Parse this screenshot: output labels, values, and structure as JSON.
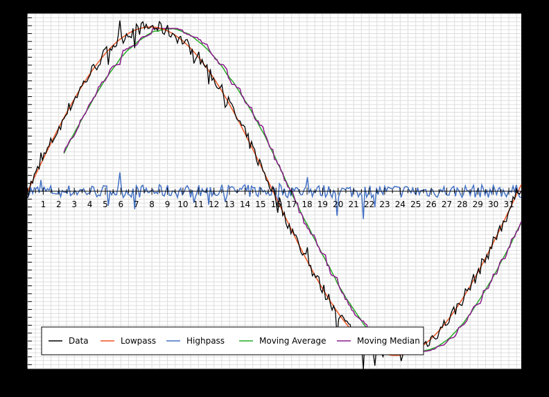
{
  "chart_data": {
    "type": "line",
    "x_ticks": [
      1,
      2,
      3,
      4,
      5,
      6,
      7,
      8,
      9,
      10,
      11,
      12,
      13,
      14,
      15,
      16,
      17,
      18,
      19,
      20,
      21,
      22,
      23,
      24,
      25,
      26,
      27,
      28,
      29,
      30,
      31
    ],
    "x_range": [
      0,
      31.8
    ],
    "y_range": [
      -1.08,
      1.08
    ],
    "grid": true,
    "legend_placement": "bottom-left",
    "series": [
      {
        "name": "Data",
        "color": "#000000"
      },
      {
        "name": "Lowpass",
        "color": "#ee5522"
      },
      {
        "name": "Highpass",
        "color": "#4472c4"
      },
      {
        "name": "Moving Average",
        "color": "#22aa22"
      },
      {
        "name": "Moving Median",
        "color": "#8b1a8b"
      }
    ]
  }
}
